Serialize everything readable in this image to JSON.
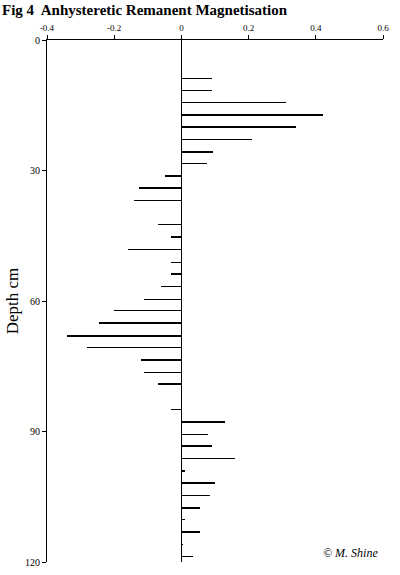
{
  "chart_data": {
    "type": "bar",
    "orientation": "horizontal",
    "title": "Fig 4  Anhysteretic Remanent Magnetisation",
    "y_label": "Depth cm",
    "color": "#000000",
    "y": [
      8.9,
      11.6,
      14.4,
      17.3,
      20.0,
      22.9,
      25.8,
      28.4,
      31.3,
      34.0,
      36.9,
      42.4,
      45.3,
      48.2,
      51.1,
      53.8,
      56.7,
      59.6,
      62.2,
      65.1,
      68.0,
      70.7,
      73.6,
      76.4,
      79.1,
      84.9,
      87.8,
      90.7,
      93.3,
      96.2,
      99.1,
      101.8,
      104.7,
      107.6,
      110.2,
      113.1,
      116.0,
      118.7
    ],
    "values": [
      0.09,
      0.09,
      0.31,
      0.42,
      0.34,
      0.21,
      0.095,
      0.075,
      -0.05,
      -0.125,
      -0.14,
      -0.07,
      -0.03,
      -0.16,
      -0.03,
      -0.03,
      -0.06,
      -0.11,
      -0.2,
      -0.245,
      -0.34,
      -0.28,
      -0.12,
      -0.11,
      -0.07,
      -0.03,
      0.13,
      0.08,
      0.09,
      0.16,
      0.01,
      0.1,
      0.085,
      0.055,
      0.01,
      0.055,
      0.005,
      0.035
    ],
    "xlim": [
      -0.4,
      0.6
    ],
    "xticks": [
      -0.4,
      -0.2,
      0,
      0.2,
      0.4,
      0.6
    ],
    "ylim": [
      0,
      120
    ],
    "yticks": [
      0,
      30,
      60,
      90,
      120
    ],
    "grid": false,
    "annotations": [
      "© M. Shine"
    ]
  }
}
